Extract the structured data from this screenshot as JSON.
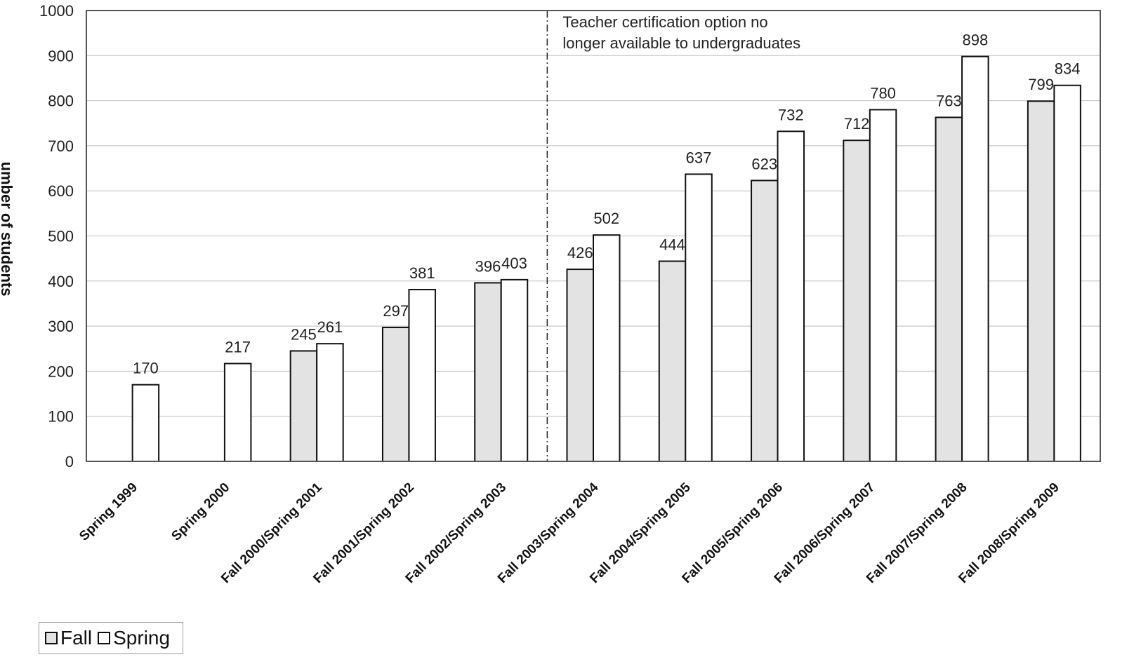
{
  "chart_data": {
    "type": "bar",
    "title": "",
    "xlabel": "",
    "ylabel": "umber of students",
    "ylim": [
      0,
      1000
    ],
    "yticks": [
      0,
      100,
      200,
      300,
      400,
      500,
      600,
      700,
      800,
      900,
      1000
    ],
    "grid": true,
    "legend_position": "bottom-left",
    "categories": [
      "Spring 1999",
      "Spring 2000",
      "Fall 2000/Spring 2001",
      "Fall 2001/Spring 2002",
      "Fall 2002/Spring 2003",
      "Fall 2003/Spring 2004",
      "Fall 2004/Spring 2005",
      "Fall 2005/Spring 2006",
      "Fall 2006/Spring 2007",
      "Fall 2007/Spring 2008",
      "Fall 2008/Spring 2009"
    ],
    "series": [
      {
        "name": "Fall",
        "color": "#e3e3e3",
        "values": [
          null,
          null,
          245,
          297,
          396,
          426,
          444,
          623,
          712,
          763,
          799
        ]
      },
      {
        "name": "Spring",
        "color": "#ffffff",
        "values": [
          170,
          217,
          261,
          381,
          403,
          502,
          637,
          732,
          780,
          898,
          834
        ]
      }
    ],
    "annotation": {
      "lines": [
        "Teacher certification option no",
        "longer available to undergraduates"
      ],
      "marker_between": [
        "Fall 2002/Spring 2003",
        "Fall 2003/Spring 2004"
      ]
    }
  }
}
